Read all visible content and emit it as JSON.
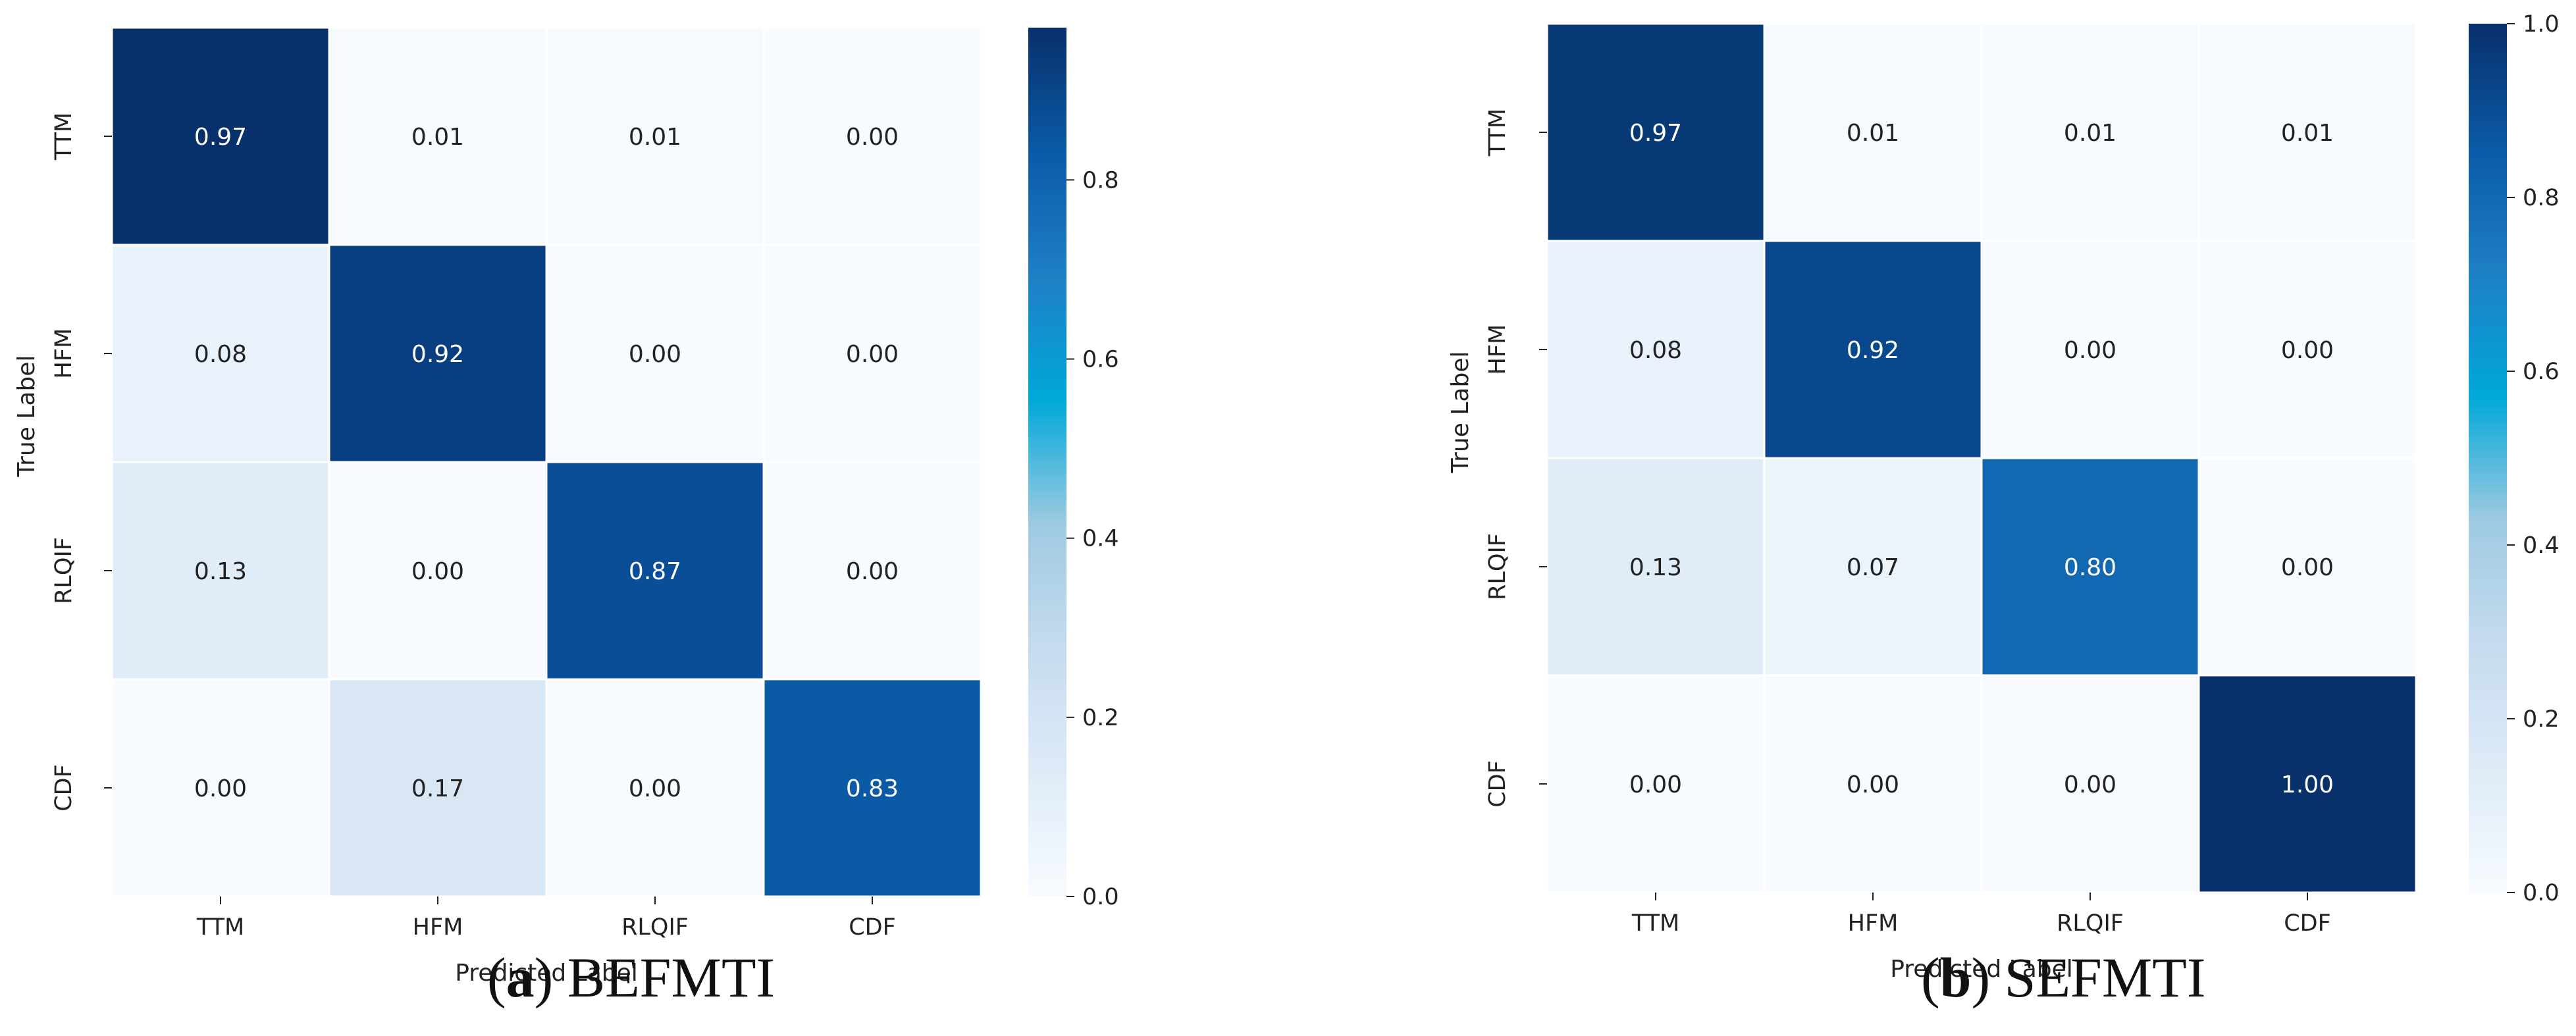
{
  "chart_data": [
    {
      "type": "heatmap",
      "caption_letter": "a",
      "caption_text": "BEFMTI",
      "xlabel": "Predicted Label",
      "ylabel": "True Label",
      "x_categories": [
        "TTM",
        "HFM",
        "RLQIF",
        "CDF"
      ],
      "y_categories": [
        "TTM",
        "HFM",
        "RLQIF",
        "CDF"
      ],
      "values": [
        [
          0.97,
          0.01,
          0.01,
          0.0
        ],
        [
          0.08,
          0.92,
          0.0,
          0.0
        ],
        [
          0.13,
          0.0,
          0.87,
          0.0
        ],
        [
          0.0,
          0.17,
          0.0,
          0.83
        ]
      ],
      "colorbar": {
        "range": [
          0,
          0.97
        ],
        "ticks": [
          0.0,
          0.2,
          0.4,
          0.6,
          0.8
        ],
        "tick_labels": [
          "0.0",
          "0.2",
          "0.4",
          "0.6",
          "0.8"
        ]
      }
    },
    {
      "type": "heatmap",
      "caption_letter": "b",
      "caption_text": "SEFMTI",
      "xlabel": "Predicted Label",
      "ylabel": "True Label",
      "x_categories": [
        "TTM",
        "HFM",
        "RLQIF",
        "CDF"
      ],
      "y_categories": [
        "TTM",
        "HFM",
        "RLQIF",
        "CDF"
      ],
      "values": [
        [
          0.97,
          0.01,
          0.01,
          0.01
        ],
        [
          0.08,
          0.92,
          0.0,
          0.0
        ],
        [
          0.13,
          0.07,
          0.8,
          0.0
        ],
        [
          0.0,
          0.0,
          0.0,
          1.0
        ]
      ],
      "colorbar": {
        "range": [
          0,
          1.0
        ],
        "ticks": [
          0.0,
          0.2,
          0.4,
          0.6,
          0.8,
          1.0
        ],
        "tick_labels": [
          "0.0",
          "0.2",
          "0.4",
          "0.6",
          "0.8",
          "1.0"
        ]
      }
    }
  ],
  "colors": {
    "colormap": [
      "#f7fbff",
      "#deebf7",
      "#c6dbef",
      "#9ecae1",
      "#00a8d8",
      "#1f7fc4",
      "#0a5aa6",
      "#08306b"
    ],
    "text_dark": "#222222",
    "text_light": "#ffffff"
  }
}
